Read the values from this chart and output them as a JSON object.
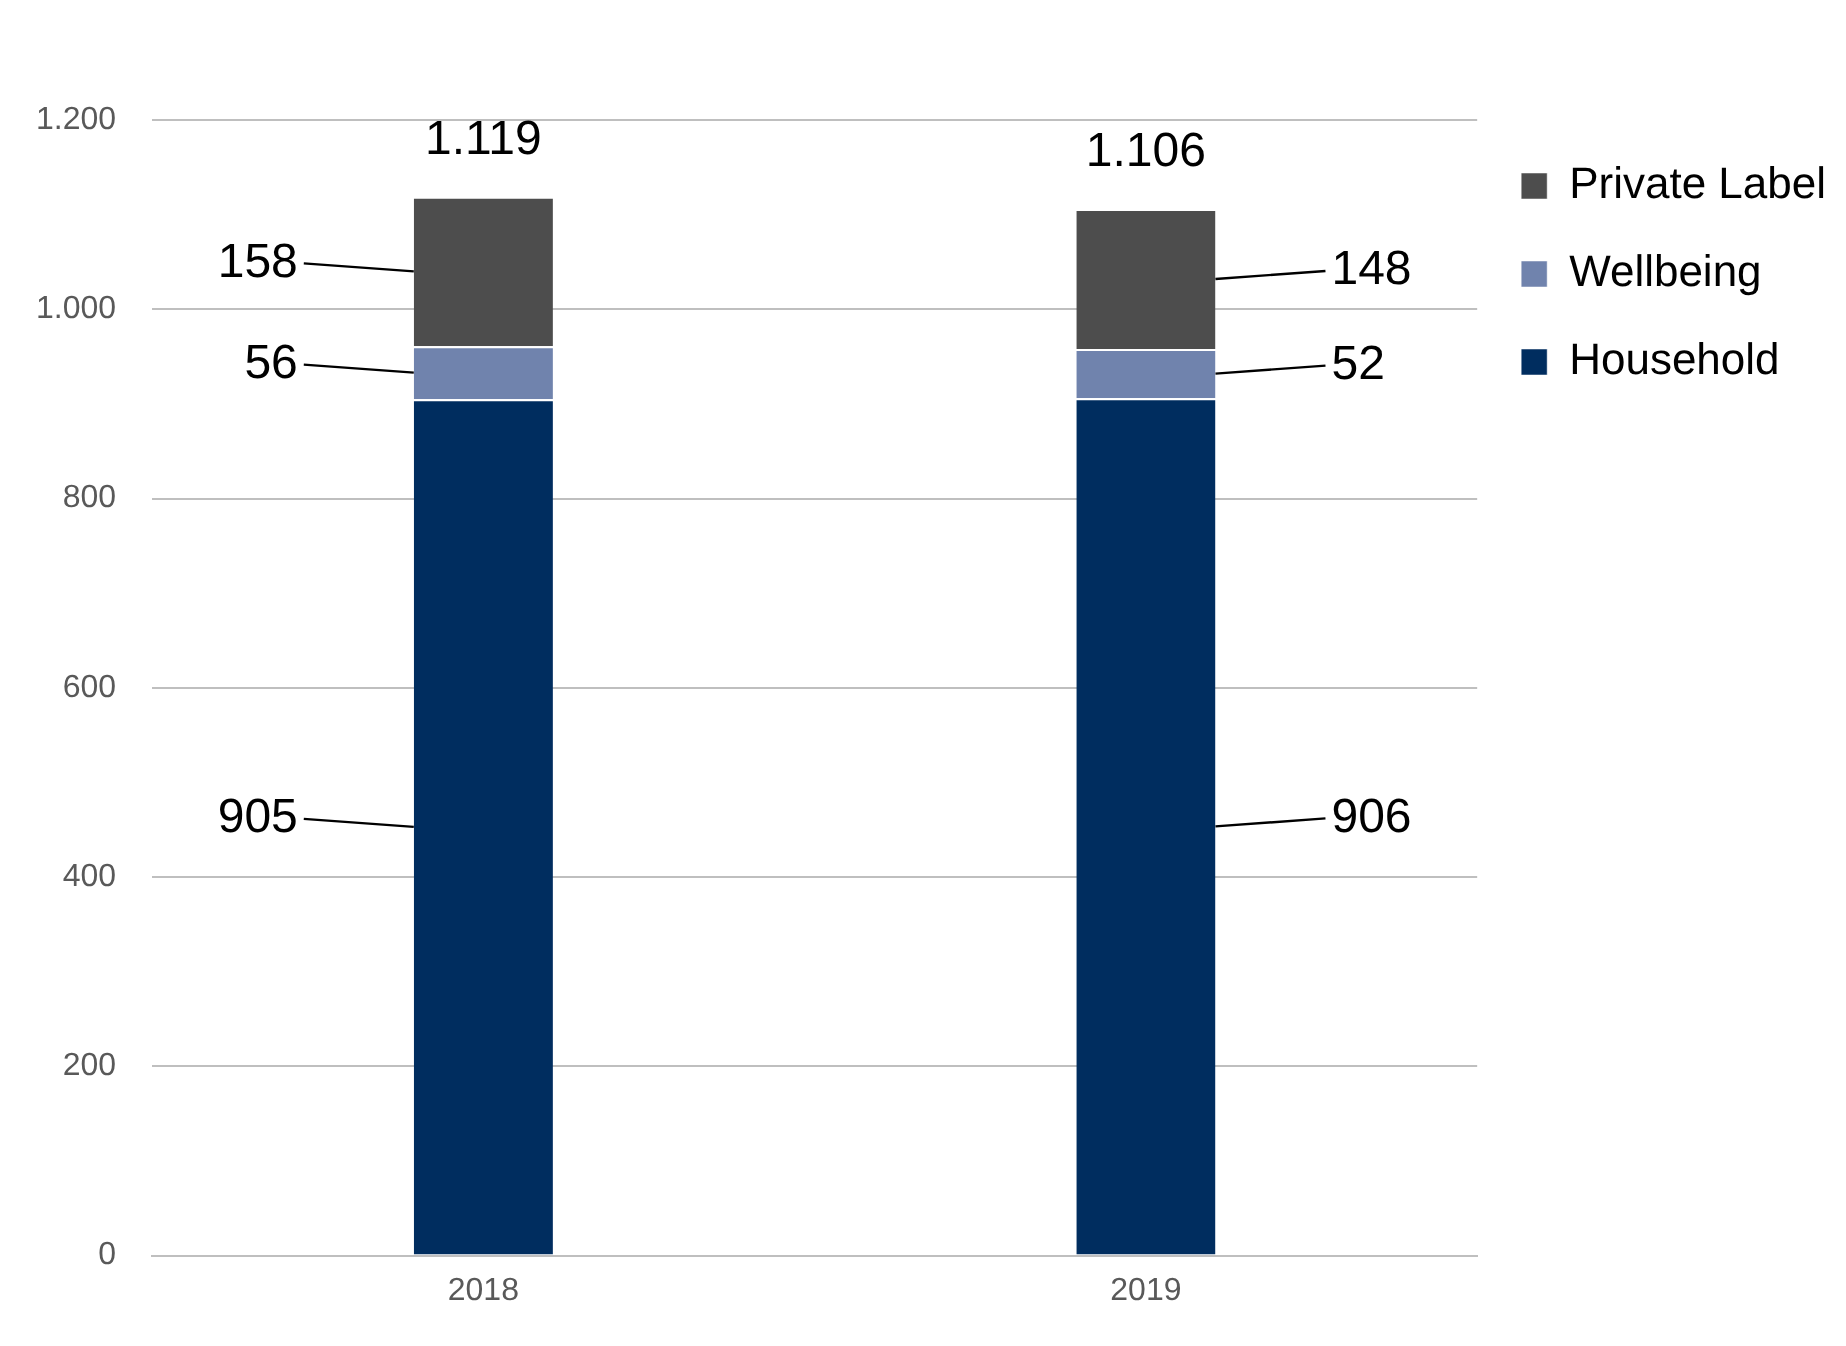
{
  "chart_data": {
    "type": "bar",
    "stacked": true,
    "categories": [
      "2018",
      "2019"
    ],
    "series": [
      {
        "name": "Household",
        "color": "#002d5f",
        "values": [
          905,
          906
        ]
      },
      {
        "name": "Wellbeing",
        "color": "#7083ad",
        "values": [
          56,
          52
        ]
      },
      {
        "name": "Private Label",
        "color": "#4d4d4d",
        "values": [
          158,
          148
        ]
      }
    ],
    "ylim": [
      0,
      1200
    ],
    "yticks": [
      0,
      200,
      400,
      600,
      800,
      {
        "value": 1000,
        "label": "1.000"
      },
      {
        "value": 1200,
        "label": "1.200"
      }
    ],
    "grid": "y",
    "legend": "top right",
    "data_labels": true,
    "totals": [
      "1.119",
      "1.106"
    ]
  }
}
